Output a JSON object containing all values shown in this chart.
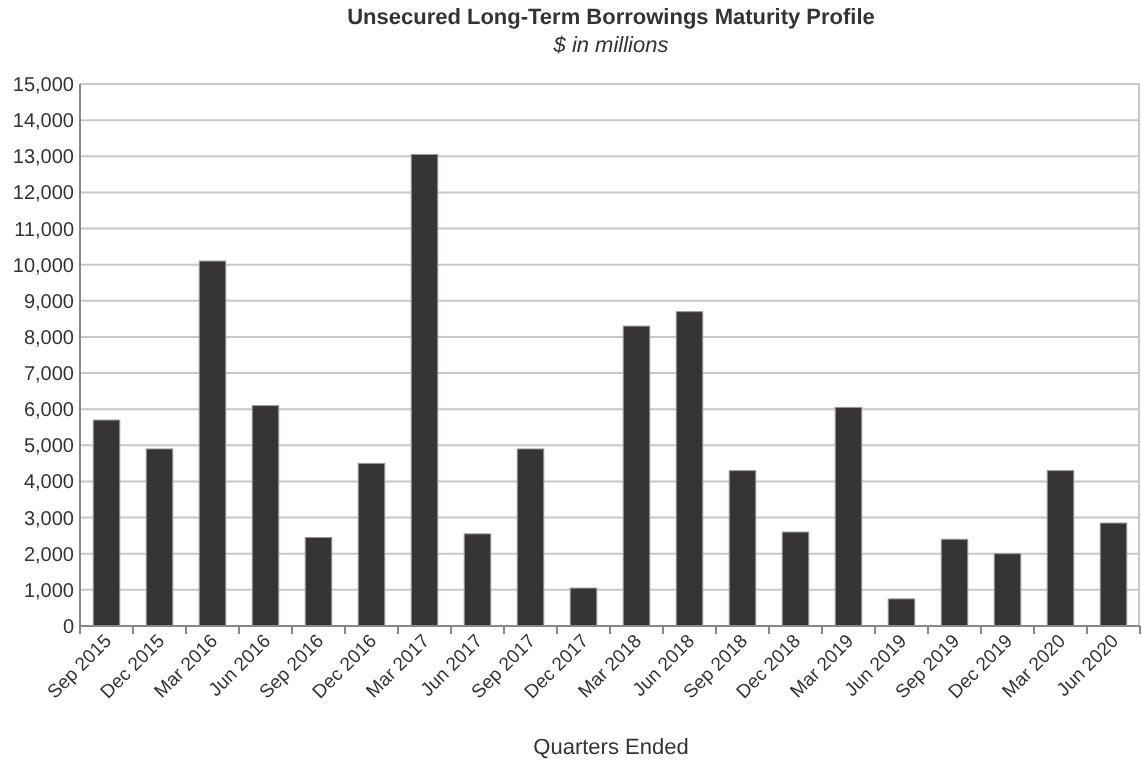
{
  "chart_data": {
    "type": "bar",
    "title": "Unsecured Long-Term Borrowings Maturity Profile",
    "subtitle": "$ in millions",
    "xlabel": "Quarters Ended",
    "categories": [
      "Sep 2015",
      "Dec 2015",
      "Mar 2016",
      "Jun 2016",
      "Sep 2016",
      "Dec 2016",
      "Mar 2017",
      "Jun 2017",
      "Sep 2017",
      "Dec 2017",
      "Mar 2018",
      "Jun 2018",
      "Sep 2018",
      "Dec 2018",
      "Mar 2019",
      "Jun 2019",
      "Sep 2019",
      "Dec 2019",
      "Mar 2020",
      "Jun 2020"
    ],
    "values": [
      5700,
      4900,
      10100,
      6100,
      2450,
      4500,
      13050,
      2550,
      4900,
      1050,
      8300,
      8700,
      4300,
      2600,
      6050,
      750,
      2400,
      2000,
      4300,
      2850
    ],
    "color": "#363435",
    "ylim": [
      0,
      15000
    ],
    "yticks": [
      {
        "value": 0,
        "label": "0"
      },
      {
        "value": 1000,
        "label": "1,000"
      },
      {
        "value": 2000,
        "label": "2,000"
      },
      {
        "value": 3000,
        "label": "3,000"
      },
      {
        "value": 4000,
        "label": "4,000"
      },
      {
        "value": 5000,
        "label": "5,000"
      },
      {
        "value": 6000,
        "label": "6,000"
      },
      {
        "value": 7000,
        "label": "7,000"
      },
      {
        "value": 8000,
        "label": "8,000"
      },
      {
        "value": 9000,
        "label": "9,000"
      },
      {
        "value": 10000,
        "label": "10,000"
      },
      {
        "value": 11000,
        "label": "11,000"
      },
      {
        "value": 12000,
        "label": "12,000"
      },
      {
        "value": 13000,
        "label": "13,000"
      },
      {
        "value": 14000,
        "label": "14,000"
      },
      {
        "value": 15000,
        "label": "15,000"
      }
    ],
    "grid": "y"
  }
}
